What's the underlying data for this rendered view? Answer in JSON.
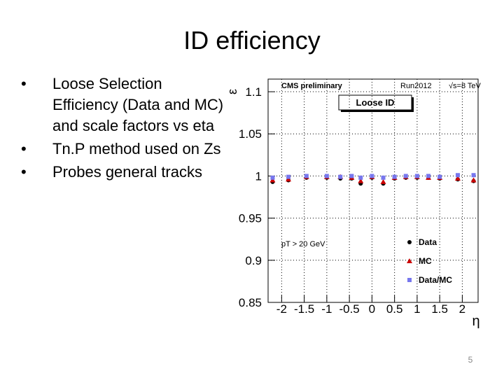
{
  "slide": {
    "title": "ID efficiency",
    "bullets": [
      "Loose Selection Efficiency (Data and MC) and scale factors vs eta",
      "Tn.P method used on Zs",
      "Probes general tracks"
    ],
    "page_number": 5
  },
  "chart_data": {
    "type": "scatter",
    "annotations": [
      "CMS preliminary",
      "Run2012",
      "√s=8 TeV",
      "pT > 20 GeV"
    ],
    "subtitle": "Loose ID",
    "x_label": "η",
    "y_label": "ε",
    "x": [
      -2.2,
      -1.85,
      -1.45,
      -1.0,
      -0.7,
      -0.45,
      -0.25,
      0.0,
      0.25,
      0.5,
      0.75,
      1.0,
      1.25,
      1.5,
      1.9,
      2.25
    ],
    "series": [
      {
        "name": "Data",
        "color": "#000000",
        "marker": "circle",
        "values": [
          0.993,
          0.995,
          0.998,
          0.998,
          0.997,
          0.997,
          0.991,
          0.998,
          0.991,
          0.997,
          0.998,
          0.998,
          0.998,
          0.997,
          0.996,
          0.994
        ]
      },
      {
        "name": "MC",
        "color": "#cc0000",
        "marker": "triangle",
        "values": [
          0.995,
          0.996,
          0.999,
          0.999,
          0.999,
          0.998,
          0.994,
          0.999,
          0.993,
          0.998,
          0.999,
          0.999,
          0.998,
          0.998,
          0.997,
          0.995
        ]
      },
      {
        "name": "Data/MC",
        "color": "#7777ee",
        "marker": "square",
        "values": [
          0.998,
          0.999,
          1.0,
          1.0,
          0.999,
          1.0,
          0.998,
          1.0,
          0.998,
          0.999,
          1.0,
          1.0,
          1.0,
          0.999,
          1.001,
          1.001
        ]
      }
    ],
    "xlim": [
      -2.3,
      2.35
    ],
    "xticks": [
      -2,
      -1.5,
      -1,
      -0.5,
      0,
      0.5,
      1,
      1.5,
      2
    ],
    "ylim": [
      0.85,
      1.115
    ],
    "yticks": [
      0.85,
      0.9,
      0.95,
      1,
      1.05,
      1.1
    ],
    "grid": true,
    "legend": "lower right"
  }
}
